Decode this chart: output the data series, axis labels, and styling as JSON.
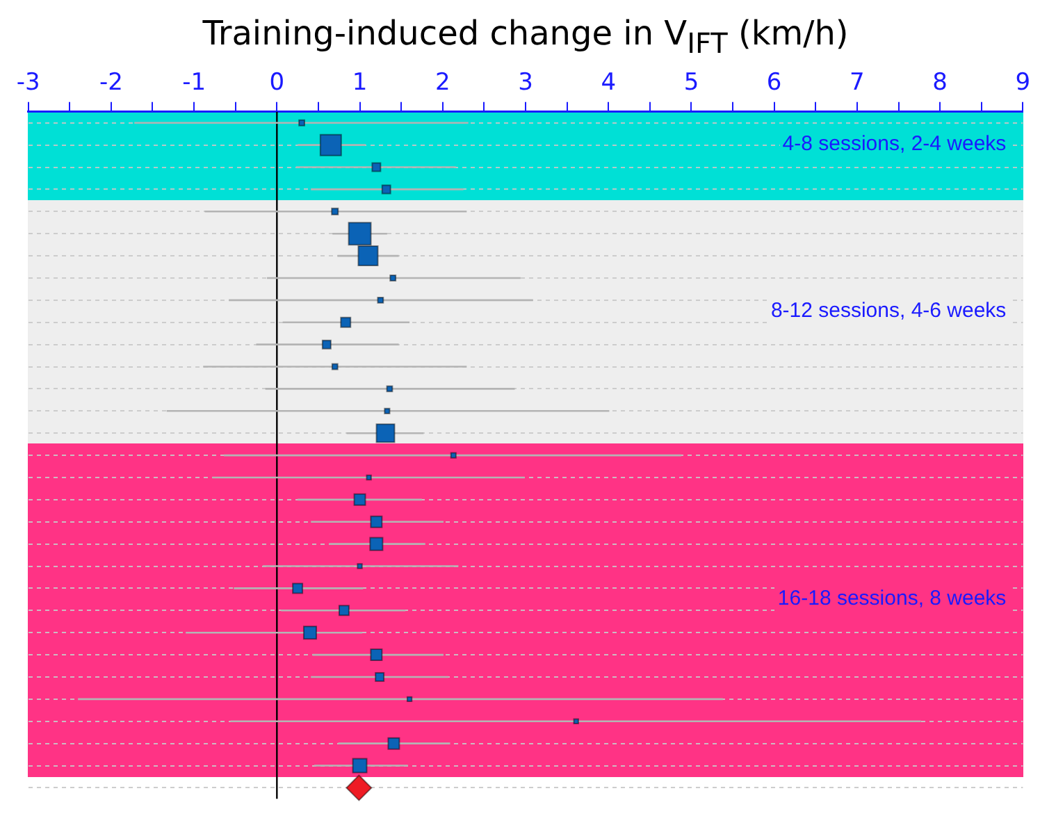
{
  "chart_data": {
    "type": "bubble",
    "title": "Training-induced change in V$_{IFT}$ (km/h)",
    "marker": "square",
    "orientation": "horizontal",
    "categories": [
      null,
      null,
      null,
      null,
      null,
      null,
      null,
      null,
      null,
      null,
      null,
      null,
      null,
      null,
      null,
      null,
      null,
      null,
      null,
      null,
      null,
      null,
      null,
      null,
      null,
      null,
      null,
      null,
      null,
      null,
      null
    ],
    "series": [
      {
        "color": "#0b63b6",
        "values": [
          0.3,
          0.65,
          1.2,
          1.32,
          0.7,
          1.0,
          1.1,
          1.4,
          1.25,
          0.83,
          0.6,
          0.7,
          1.36,
          1.33,
          1.31,
          2.13,
          1.11,
          1.0,
          1.2,
          1.2,
          1.0,
          0.25,
          0.81,
          0.4,
          1.2,
          1.24,
          1.6,
          3.61,
          1.41,
          1.0,
          null
        ],
        "sizes": [
          0.06,
          0.88,
          0.14,
          0.14,
          0.08,
          1,
          0.77,
          0.06,
          0.06,
          0.19,
          0.14,
          0.06,
          0.06,
          0.05,
          0.66,
          0.05,
          0.04,
          0.25,
          0.25,
          0.32,
          0.04,
          0.19,
          0.19,
          0.32,
          0.25,
          0.14,
          0.04,
          0.04,
          0.25,
          0.39,
          null
        ],
        "errors": [
          [
            -1.72,
            2.31
          ],
          [
            0.25,
            1.07
          ],
          [
            0.23,
            2.16
          ],
          [
            0.41,
            2.25
          ],
          [
            -0.87,
            2.29
          ],
          [
            0.67,
            1.33
          ],
          [
            0.73,
            1.47
          ],
          [
            -0.12,
            2.94
          ],
          [
            -0.58,
            3.09
          ],
          [
            0.07,
            1.6
          ],
          [
            -0.25,
            1.47
          ],
          [
            -0.89,
            2.29
          ],
          [
            -0.14,
            2.87
          ],
          [
            -1.33,
            4.01
          ],
          [
            0.84,
            1.77
          ],
          [
            -0.64,
            4.88
          ],
          [
            -0.78,
            2.99
          ],
          [
            0.25,
            1.75
          ],
          [
            0.41,
            2.01
          ],
          [
            0.63,
            1.79
          ],
          [
            -0.17,
            2.19
          ],
          [
            -0.52,
            1.04
          ],
          [
            0.05,
            1.55
          ],
          [
            -1.1,
            1.03
          ],
          [
            0.43,
            2.01
          ],
          [
            0.41,
            2.07
          ],
          [
            -2.4,
            5.38
          ],
          [
            -0.56,
            7.77
          ],
          [
            0.74,
            2.09
          ],
          [
            0.45,
            1.58
          ],
          null
        ]
      },
      {
        "type": "scatter",
        "marker": "diamond",
        "color": "#ee1c25",
        "values": [
          null,
          null,
          null,
          null,
          null,
          null,
          null,
          null,
          null,
          null,
          null,
          null,
          null,
          null,
          null,
          null,
          null,
          null,
          null,
          null,
          null,
          null,
          null,
          null,
          null,
          null,
          null,
          null,
          null,
          null,
          0.99
        ]
      }
    ],
    "xlim": [
      -3,
      9
    ],
    "xticks": [
      -3,
      {
        "value": -2.5,
        "label": null
      },
      -2,
      {
        "value": -1.5,
        "label": null
      },
      -1,
      {
        "value": -0.5,
        "label": null
      },
      0,
      {
        "value": 0.5,
        "label": null
      },
      1,
      {
        "value": 1.5,
        "label": null
      },
      2,
      {
        "value": 2.5,
        "label": null
      },
      3,
      {
        "value": 3.5,
        "label": null
      },
      4,
      {
        "value": 4.5,
        "label": null
      },
      5,
      {
        "value": 5.5,
        "label": null
      },
      6,
      {
        "value": 6.5,
        "label": null
      },
      7,
      {
        "value": 7.5,
        "label": null
      },
      8,
      {
        "value": 8.5,
        "label": null
      },
      9
    ],
    "grid": "y",
    "annotations": [
      "4-8 sessions, 2-4 weeks",
      "8-12 sessions, 4-6 weeks",
      "16-18 sessions, 8 weeks"
    ],
    "ref_lines": [
      {
        "axis": "x",
        "value": 0,
        "color": "#000000"
      }
    ]
  }
}
